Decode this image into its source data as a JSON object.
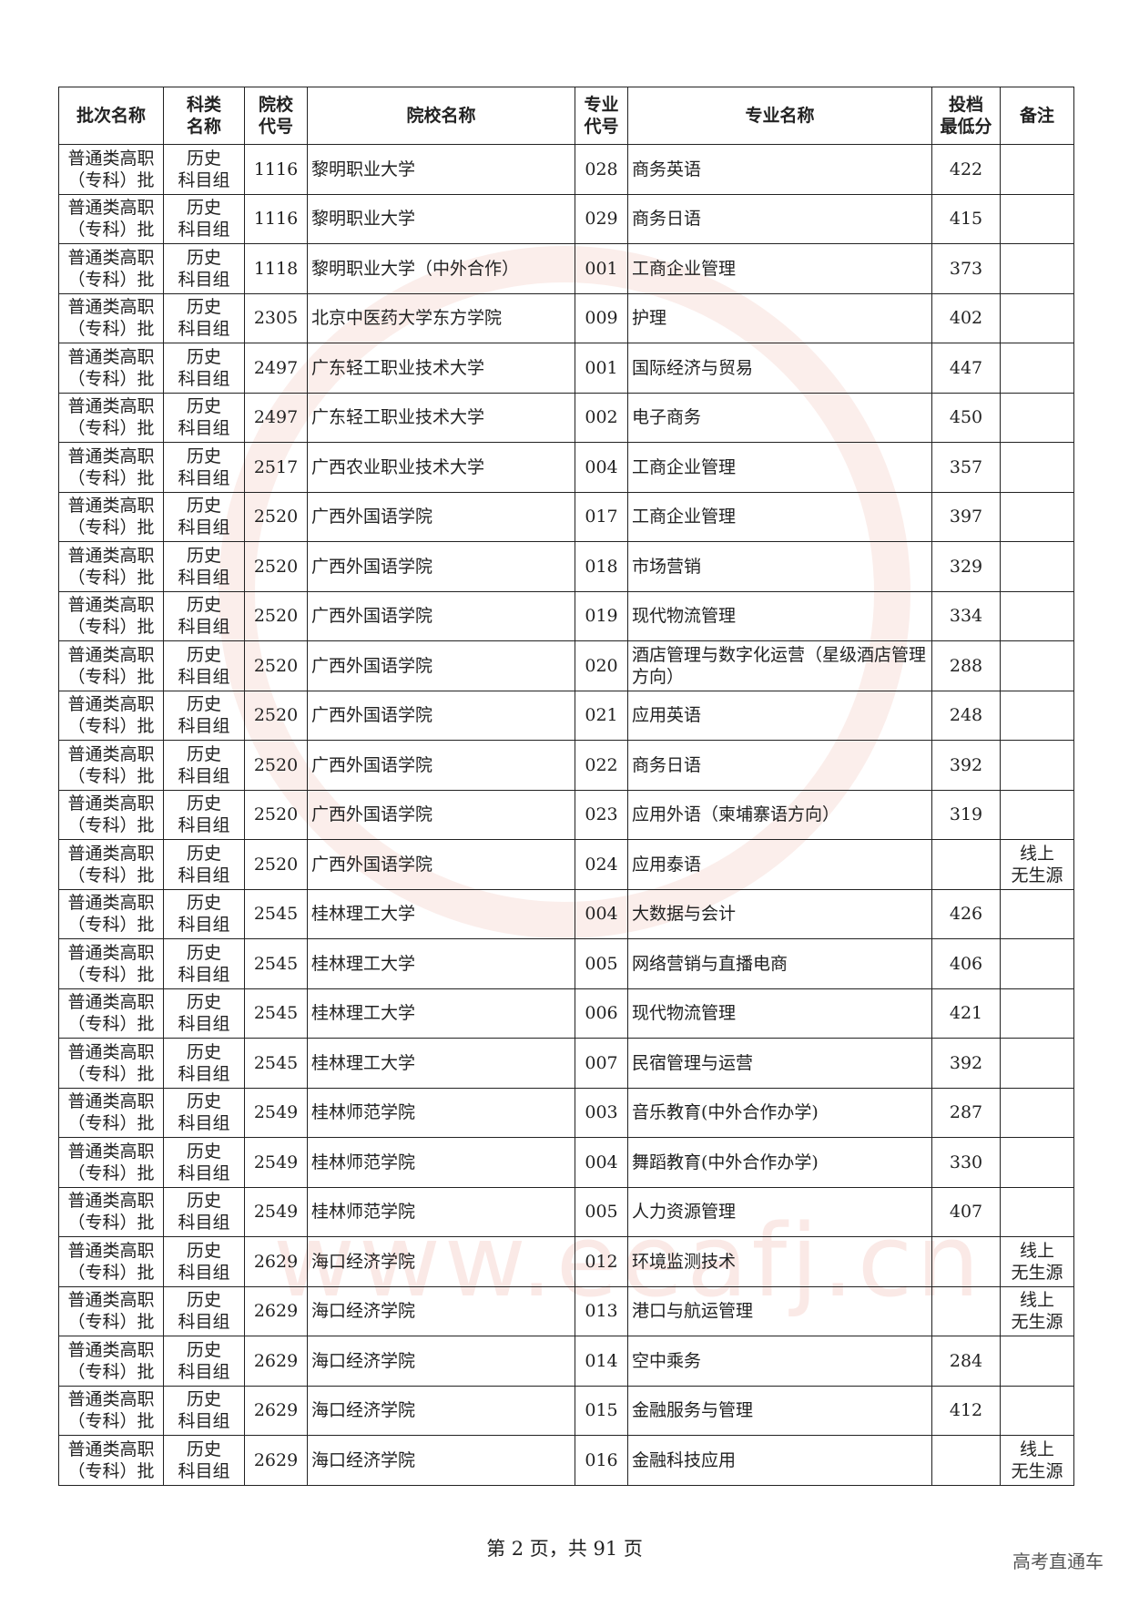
{
  "watermark": "www.eeafj.cn",
  "table": {
    "header": [
      "批次名称",
      [
        "科类",
        "名称"
      ],
      [
        "院校",
        "代号"
      ],
      "院校名称",
      [
        "专业",
        "代号"
      ],
      "专业名称",
      [
        "投档",
        "最低分"
      ],
      "备注"
    ],
    "rows": [
      [
        [
          "普通类高职",
          "（专科）批"
        ],
        [
          "历史",
          "科目组"
        ],
        "1116",
        "黎明职业大学",
        "028",
        "商务英语",
        422,
        null
      ],
      [
        [
          "普通类高职",
          "（专科）批"
        ],
        [
          "历史",
          "科目组"
        ],
        "1116",
        "黎明职业大学",
        "029",
        "商务日语",
        415,
        null
      ],
      [
        [
          "普通类高职",
          "（专科）批"
        ],
        [
          "历史",
          "科目组"
        ],
        "1118",
        "黎明职业大学（中外合作）",
        "001",
        "工商企业管理",
        373,
        null
      ],
      [
        [
          "普通类高职",
          "（专科）批"
        ],
        [
          "历史",
          "科目组"
        ],
        "2305",
        "北京中医药大学东方学院",
        "009",
        "护理",
        402,
        null
      ],
      [
        [
          "普通类高职",
          "（专科）批"
        ],
        [
          "历史",
          "科目组"
        ],
        "2497",
        "广东轻工职业技术大学",
        "001",
        "国际经济与贸易",
        447,
        null
      ],
      [
        [
          "普通类高职",
          "（专科）批"
        ],
        [
          "历史",
          "科目组"
        ],
        "2497",
        "广东轻工职业技术大学",
        "002",
        "电子商务",
        450,
        null
      ],
      [
        [
          "普通类高职",
          "（专科）批"
        ],
        [
          "历史",
          "科目组"
        ],
        "2517",
        "广西农业职业技术大学",
        "004",
        "工商企业管理",
        357,
        null
      ],
      [
        [
          "普通类高职",
          "（专科）批"
        ],
        [
          "历史",
          "科目组"
        ],
        "2520",
        "广西外国语学院",
        "017",
        "工商企业管理",
        397,
        null
      ],
      [
        [
          "普通类高职",
          "（专科）批"
        ],
        [
          "历史",
          "科目组"
        ],
        "2520",
        "广西外国语学院",
        "018",
        "市场营销",
        329,
        null
      ],
      [
        [
          "普通类高职",
          "（专科）批"
        ],
        [
          "历史",
          "科目组"
        ],
        "2520",
        "广西外国语学院",
        "019",
        "现代物流管理",
        334,
        null
      ],
      [
        [
          "普通类高职",
          "（专科）批"
        ],
        [
          "历史",
          "科目组"
        ],
        "2520",
        "广西外国语学院",
        "020",
        "酒店管理与数字化运营（星级酒店管理方向）",
        288,
        null
      ],
      [
        [
          "普通类高职",
          "（专科）批"
        ],
        [
          "历史",
          "科目组"
        ],
        "2520",
        "广西外国语学院",
        "021",
        "应用英语",
        248,
        null
      ],
      [
        [
          "普通类高职",
          "（专科）批"
        ],
        [
          "历史",
          "科目组"
        ],
        "2520",
        "广西外国语学院",
        "022",
        "商务日语",
        392,
        null
      ],
      [
        [
          "普通类高职",
          "（专科）批"
        ],
        [
          "历史",
          "科目组"
        ],
        "2520",
        "广西外国语学院",
        "023",
        "应用外语（柬埔寨语方向）",
        319,
        null
      ],
      [
        [
          "普通类高职",
          "（专科）批"
        ],
        [
          "历史",
          "科目组"
        ],
        "2520",
        "广西外国语学院",
        "024",
        "应用泰语",
        null,
        [
          "线上",
          "无生源"
        ]
      ],
      [
        [
          "普通类高职",
          "（专科）批"
        ],
        [
          "历史",
          "科目组"
        ],
        "2545",
        "桂林理工大学",
        "004",
        "大数据与会计",
        426,
        null
      ],
      [
        [
          "普通类高职",
          "（专科）批"
        ],
        [
          "历史",
          "科目组"
        ],
        "2545",
        "桂林理工大学",
        "005",
        "网络营销与直播电商",
        406,
        null
      ],
      [
        [
          "普通类高职",
          "（专科）批"
        ],
        [
          "历史",
          "科目组"
        ],
        "2545",
        "桂林理工大学",
        "006",
        "现代物流管理",
        421,
        null
      ],
      [
        [
          "普通类高职",
          "（专科）批"
        ],
        [
          "历史",
          "科目组"
        ],
        "2545",
        "桂林理工大学",
        "007",
        "民宿管理与运营",
        392,
        null
      ],
      [
        [
          "普通类高职",
          "（专科）批"
        ],
        [
          "历史",
          "科目组"
        ],
        "2549",
        "桂林师范学院",
        "003",
        "音乐教育(中外合作办学)",
        287,
        null
      ],
      [
        [
          "普通类高职",
          "（专科）批"
        ],
        [
          "历史",
          "科目组"
        ],
        "2549",
        "桂林师范学院",
        "004",
        "舞蹈教育(中外合作办学)",
        330,
        null
      ],
      [
        [
          "普通类高职",
          "（专科）批"
        ],
        [
          "历史",
          "科目组"
        ],
        "2549",
        "桂林师范学院",
        "005",
        "人力资源管理",
        407,
        null
      ],
      [
        [
          "普通类高职",
          "（专科）批"
        ],
        [
          "历史",
          "科目组"
        ],
        "2629",
        "海口经济学院",
        "012",
        "环境监测技术",
        null,
        [
          "线上",
          "无生源"
        ]
      ],
      [
        [
          "普通类高职",
          "（专科）批"
        ],
        [
          "历史",
          "科目组"
        ],
        "2629",
        "海口经济学院",
        "013",
        "港口与航运管理",
        null,
        [
          "线上",
          "无生源"
        ]
      ],
      [
        [
          "普通类高职",
          "（专科）批"
        ],
        [
          "历史",
          "科目组"
        ],
        "2629",
        "海口经济学院",
        "014",
        "空中乘务",
        284,
        null
      ],
      [
        [
          "普通类高职",
          "（专科）批"
        ],
        [
          "历史",
          "科目组"
        ],
        "2629",
        "海口经济学院",
        "015",
        "金融服务与管理",
        412,
        null
      ],
      [
        [
          "普通类高职",
          "（专科）批"
        ],
        [
          "历史",
          "科目组"
        ],
        "2629",
        "海口经济学院",
        "016",
        "金融科技应用",
        null,
        [
          "线上",
          "无生源"
        ]
      ]
    ]
  },
  "footer": "第 2 页，共 91 页",
  "brand": "高考直通车"
}
